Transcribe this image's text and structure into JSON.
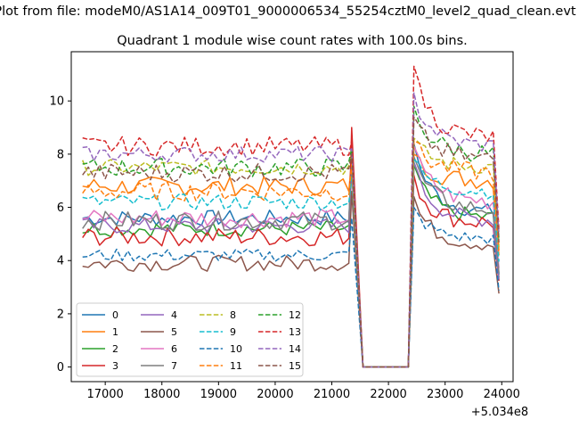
{
  "suptitle": "Plot from file: modeM0/AS1A14_009T01_9000006534_55254cztM0_level2_quad_clean.evt",
  "chart_data": {
    "type": "line",
    "title": "Quadrant 1 module wise count rates with 100.0s bins.",
    "xlabel": "",
    "ylabel": "",
    "x_offset_label": "+5.034e8",
    "xlim": [
      16400,
      24200
    ],
    "ylim": [
      -0.55,
      11.85
    ],
    "xticks": [
      17000,
      18000,
      19000,
      20000,
      21000,
      22000,
      23000,
      24000
    ],
    "yticks": [
      0,
      2,
      4,
      6,
      8,
      10
    ],
    "grid": false,
    "legend": {
      "placement": "lower-left",
      "columns": 4
    },
    "colors": [
      "#1f77b4",
      "#ff7f0e",
      "#2ca02c",
      "#d62728",
      "#9467bd",
      "#8c564b",
      "#e377c2",
      "#7f7f7f",
      "#bcbd22",
      "#17becf"
    ],
    "series": [
      {
        "name": "0",
        "style": "solid",
        "base": 5.6,
        "post": 5.8,
        "amp": 0.25,
        "peak": 8.2,
        "post_peak": 8.4
      },
      {
        "name": "1",
        "style": "solid",
        "base": 6.8,
        "post": 7.0,
        "amp": 0.3,
        "peak": 7.8,
        "post_peak": 8.0
      },
      {
        "name": "2",
        "style": "solid",
        "base": 5.2,
        "post": 5.6,
        "amp": 0.25,
        "peak": 8.0,
        "post_peak": 7.6
      },
      {
        "name": "3",
        "style": "solid",
        "base": 4.9,
        "post": 5.4,
        "amp": 0.3,
        "peak": 9.0,
        "post_peak": 7.2
      },
      {
        "name": "4",
        "style": "solid",
        "base": 5.3,
        "post": 5.5,
        "amp": 0.25,
        "peak": 7.4,
        "post_peak": 7.7
      },
      {
        "name": "5",
        "style": "solid",
        "base": 3.9,
        "post": 4.6,
        "amp": 0.25,
        "peak": 6.6,
        "post_peak": 6.4
      },
      {
        "name": "6",
        "style": "solid",
        "base": 5.6,
        "post": 6.2,
        "amp": 0.3,
        "peak": 7.5,
        "post_peak": 8.3
      },
      {
        "name": "7",
        "style": "solid",
        "base": 5.5,
        "post": 5.9,
        "amp": 0.3,
        "peak": 7.6,
        "post_peak": 7.9
      },
      {
        "name": "8",
        "style": "dashed",
        "base": 7.5,
        "post": 7.5,
        "amp": 0.25,
        "peak": 8.0,
        "post_peak": 8.6
      },
      {
        "name": "9",
        "style": "dashed",
        "base": 6.2,
        "post": 6.6,
        "amp": 0.25,
        "peak": 7.2,
        "post_peak": 7.8
      },
      {
        "name": "10",
        "style": "dashed",
        "base": 4.2,
        "post": 4.8,
        "amp": 0.2,
        "peak": 5.6,
        "post_peak": 6.0
      },
      {
        "name": "11",
        "style": "dashed",
        "base": 6.6,
        "post": 7.3,
        "amp": 0.3,
        "peak": 7.6,
        "post_peak": 8.5
      },
      {
        "name": "12",
        "style": "dashed",
        "base": 7.5,
        "post": 8.0,
        "amp": 0.3,
        "peak": 8.2,
        "post_peak": 9.8
      },
      {
        "name": "13",
        "style": "dashed",
        "base": 8.3,
        "post": 8.6,
        "amp": 0.3,
        "peak": 8.5,
        "post_peak": 11.3
      },
      {
        "name": "14",
        "style": "dashed",
        "base": 8.0,
        "post": 8.3,
        "amp": 0.25,
        "peak": 8.2,
        "post_peak": 10.3
      },
      {
        "name": "15",
        "style": "dashed",
        "base": 7.3,
        "post": 7.8,
        "amp": 0.3,
        "peak": 8.0,
        "post_peak": 9.4
      }
    ],
    "timeline": {
      "start": 16600,
      "pre_end": 21300,
      "spike": 21350,
      "drop_end": 21550,
      "gap_end": 22350,
      "post_start": 22450,
      "end": 23950,
      "step": 100
    }
  }
}
